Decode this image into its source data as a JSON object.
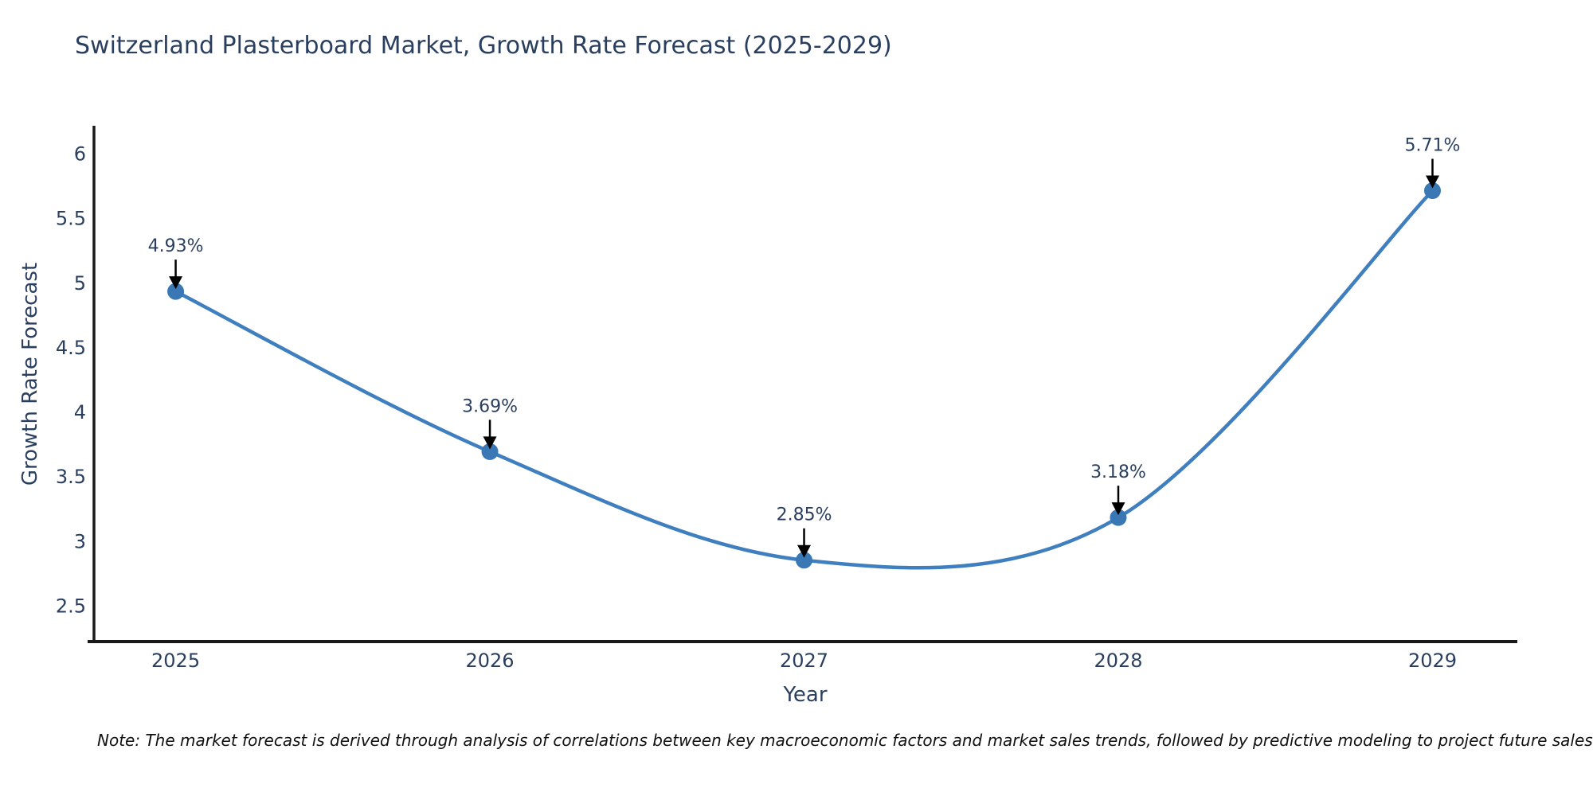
{
  "title": "Switzerland Plasterboard Market, Growth Rate Forecast (2025-2029)",
  "note": "Note: The market forecast is derived through analysis of correlations between key macroeconomic factors and market sales trends, followed by predictive modeling to project future sales",
  "colors": {
    "background": "#ffffff",
    "title_text": "#2a3f5f",
    "axis_text": "#2a3f5f",
    "note_text": "#111111",
    "line": "#3f7fbf",
    "marker": "#3a78b5",
    "spine": "#1a1a1a",
    "arrow": "#000000"
  },
  "chart_data": {
    "type": "line",
    "line_shape": "spline",
    "title": "Switzerland Plasterboard Market, Growth Rate Forecast (2025-2029)",
    "xlabel": "Year",
    "ylabel": "Growth Rate Forecast",
    "x": [
      2025,
      2026,
      2027,
      2028,
      2029
    ],
    "values": [
      4.93,
      3.69,
      2.85,
      3.18,
      5.71
    ],
    "point_labels": [
      "4.93%",
      "3.69%",
      "2.85%",
      "3.18%",
      "5.71%"
    ],
    "xticks": [
      "2025",
      "2026",
      "2027",
      "2028",
      "2029"
    ],
    "yticks": [
      2.5,
      3,
      3.5,
      4,
      4.5,
      5,
      5.5,
      6
    ],
    "xlim": [
      2024.74,
      2029.27
    ],
    "ylim": [
      2.22,
      6.2
    ],
    "grid": false,
    "legend": "none",
    "annotations": "value labels with black arrows pointing down to markers"
  }
}
